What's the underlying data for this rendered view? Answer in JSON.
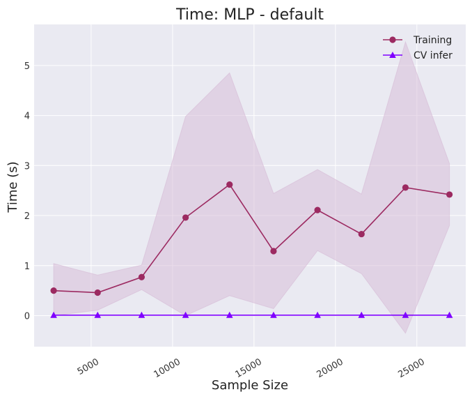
{
  "chart_data": {
    "type": "line",
    "title": "Time: MLP - default",
    "xlabel": "Sample Size",
    "ylabel": "Time (s)",
    "xlim": [
      1500,
      28000
    ],
    "ylim": [
      -0.62,
      5.82
    ],
    "xticks": [
      5000,
      10000,
      15000,
      20000,
      25000
    ],
    "yticks": [
      0,
      1,
      2,
      3,
      4,
      5
    ],
    "grid": true,
    "legend_position": "top-right",
    "x": [
      2700,
      5400,
      8100,
      10800,
      13500,
      16200,
      18900,
      21600,
      24300,
      27000
    ],
    "series": [
      {
        "name": "Training",
        "color": "#9c2a61",
        "marker": "circle",
        "values": [
          0.5,
          0.46,
          0.77,
          1.96,
          2.62,
          1.29,
          2.11,
          1.63,
          2.56,
          2.42
        ],
        "band_lower": [
          0.0,
          0.11,
          0.52,
          0.0,
          0.4,
          0.14,
          1.3,
          0.84,
          -0.35,
          1.8
        ],
        "band_upper": [
          1.04,
          0.81,
          1.01,
          3.98,
          4.85,
          2.44,
          2.92,
          2.43,
          5.47,
          3.04
        ]
      },
      {
        "name": "CV infer",
        "color": "#7f00ff",
        "marker": "triangle",
        "values": [
          0.01,
          0.01,
          0.01,
          0.01,
          0.01,
          0.01,
          0.01,
          0.01,
          0.01,
          0.01
        ]
      }
    ],
    "colors": {
      "plot_background": "#eaeaf2",
      "grid": "#ffffff",
      "band_fill": "#d6bad6"
    }
  }
}
